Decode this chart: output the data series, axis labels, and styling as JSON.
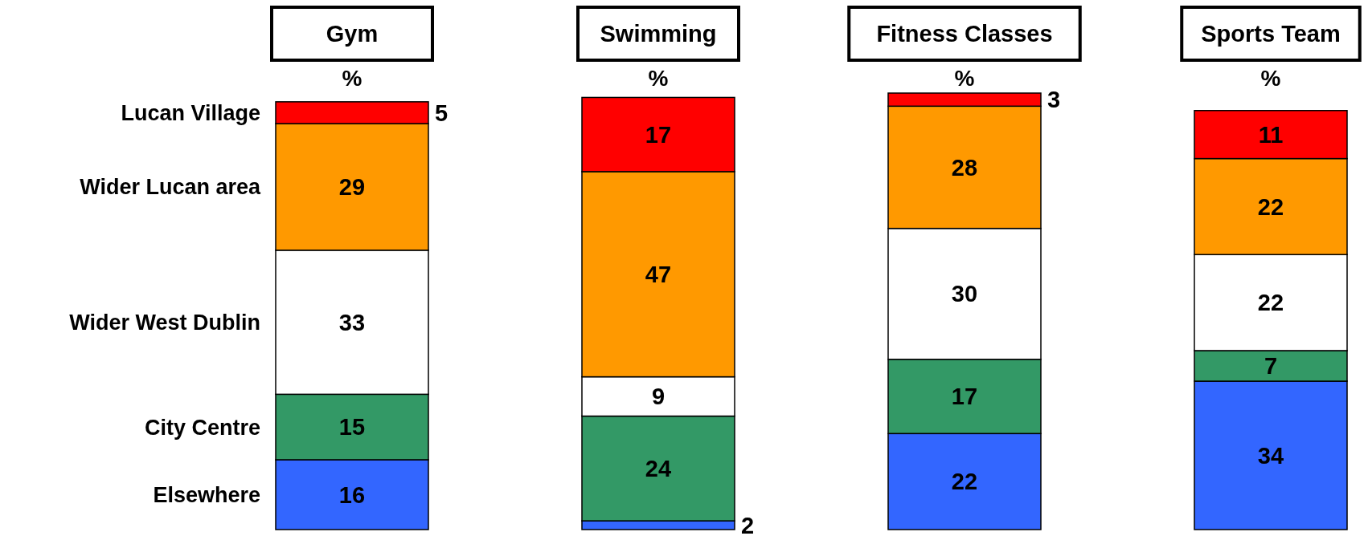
{
  "chart_data": {
    "type": "bar",
    "stacked": true,
    "categories": [
      "Gym",
      "Swimming",
      "Fitness Classes",
      "Sports Team"
    ],
    "ylabel": "%",
    "ylim": [
      0,
      100
    ],
    "tick_labels": "x",
    "legend": "left",
    "data_labels": true,
    "series": [
      {
        "name": "Elsewhere",
        "color": "#3366ff",
        "values": [
          16,
          2,
          22,
          34
        ]
      },
      {
        "name": "City Centre",
        "color": "#339966",
        "values": [
          15,
          24,
          17,
          7
        ]
      },
      {
        "name": "Wider West Dublin",
        "color": "#ffffff",
        "values": [
          33,
          9,
          30,
          22
        ]
      },
      {
        "name": "Wider Lucan area",
        "color": "#ff9900",
        "values": [
          29,
          47,
          28,
          22
        ]
      },
      {
        "name": "Lucan Village",
        "color": "#ff0000",
        "values": [
          5,
          17,
          3,
          11
        ]
      }
    ]
  }
}
